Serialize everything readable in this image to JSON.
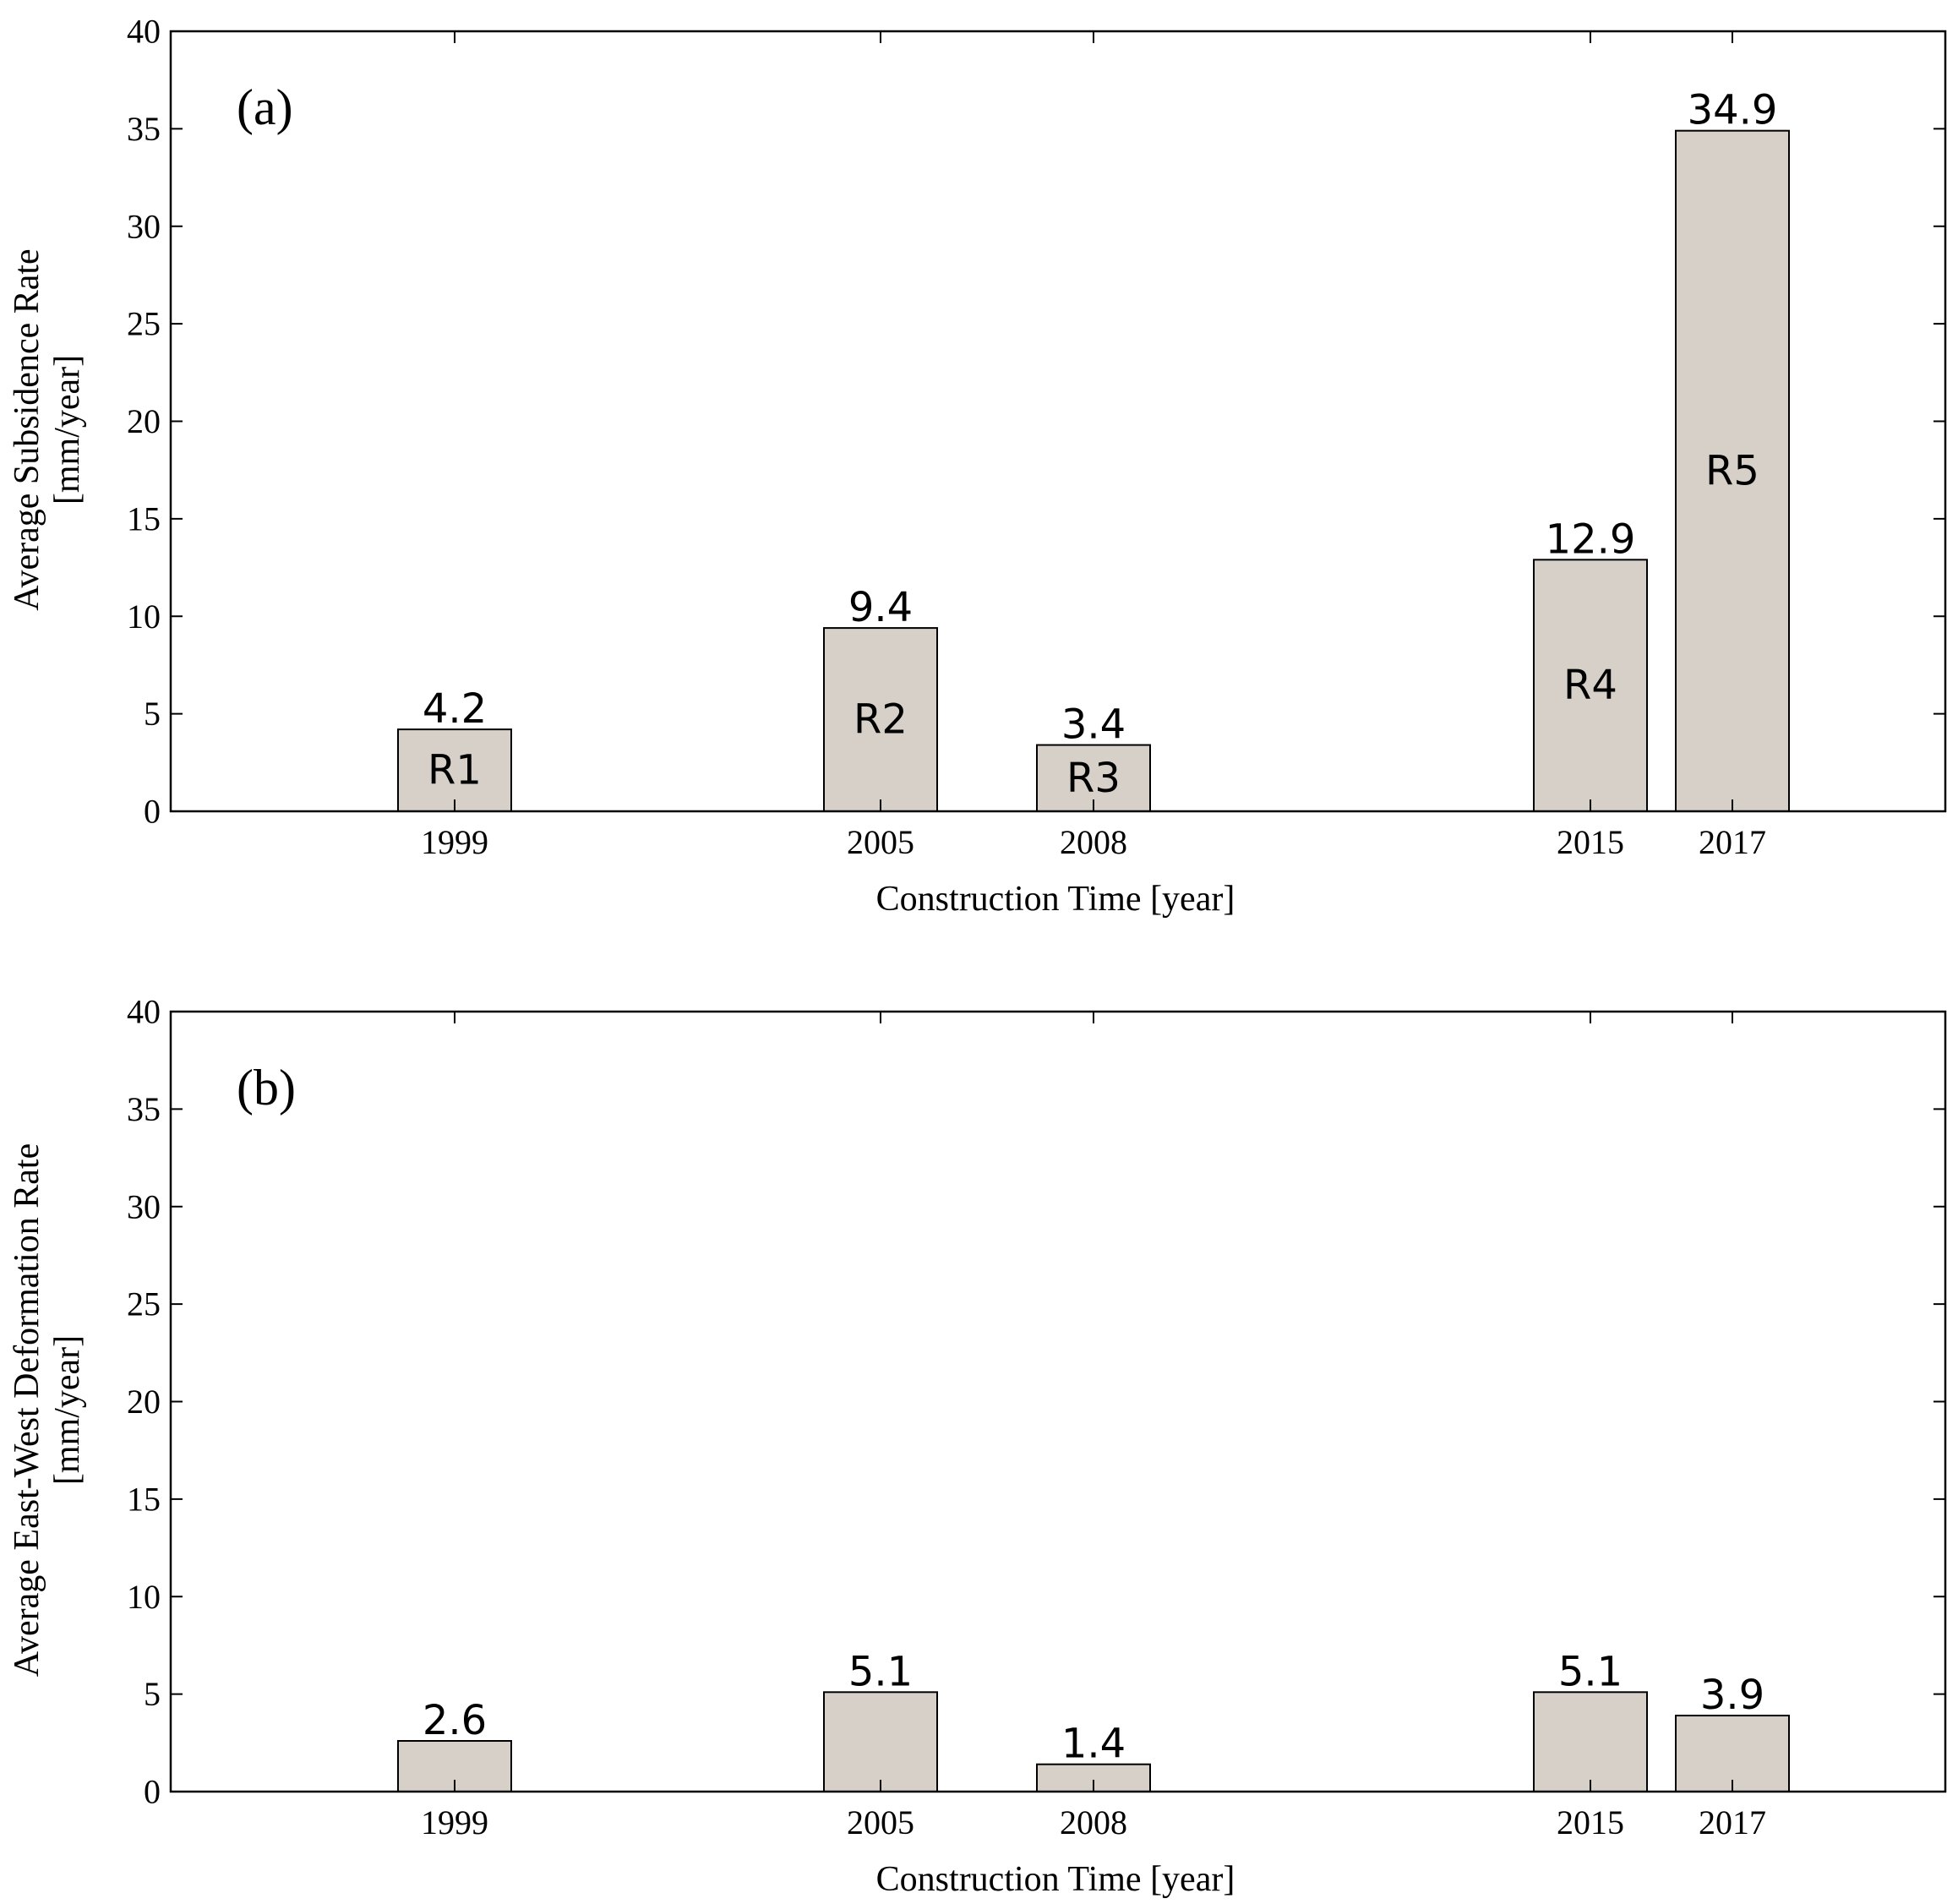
{
  "colors": {
    "bar_fill": "#d6d0c8",
    "bar_edge": "#000000",
    "background": "#ffffff"
  },
  "chart_data": [
    {
      "type": "bar",
      "panel_label": "(a)",
      "x_positions": [
        1999,
        2005,
        2008,
        2015,
        2017
      ],
      "categories": [
        "1999",
        "2005",
        "2008",
        "2015",
        "2017"
      ],
      "values": [
        4.2,
        9.4,
        3.4,
        12.9,
        34.9
      ],
      "value_labels": [
        "4.2",
        "9.4",
        "3.4",
        "12.9",
        "34.9"
      ],
      "bar_names": [
        "R1",
        "R2",
        "R3",
        "R4",
        "R5"
      ],
      "xlim": [
        1995,
        2020
      ],
      "ylim": [
        0,
        40
      ],
      "yticks": [
        0,
        5,
        10,
        15,
        20,
        25,
        30,
        35,
        40
      ],
      "xlabel": "Construction Time [year]",
      "ylabel_lines": [
        "Average Subsidence Rate",
        "[mm/year]"
      ],
      "grid": false
    },
    {
      "type": "bar",
      "panel_label": "(b)",
      "x_positions": [
        1999,
        2005,
        2008,
        2015,
        2017
      ],
      "categories": [
        "1999",
        "2005",
        "2008",
        "2015",
        "2017"
      ],
      "values": [
        2.6,
        5.1,
        1.4,
        5.1,
        3.9
      ],
      "value_labels": [
        "2.6",
        "5.1",
        "1.4",
        "5.1",
        "3.9"
      ],
      "bar_names": [],
      "xlim": [
        1995,
        2020
      ],
      "ylim": [
        0,
        40
      ],
      "yticks": [
        0,
        5,
        10,
        15,
        20,
        25,
        30,
        35,
        40
      ],
      "xlabel": "Construction Time [year]",
      "ylabel_lines": [
        "Average East-West Deformation Rate",
        "[mm/year]"
      ],
      "grid": false
    }
  ]
}
